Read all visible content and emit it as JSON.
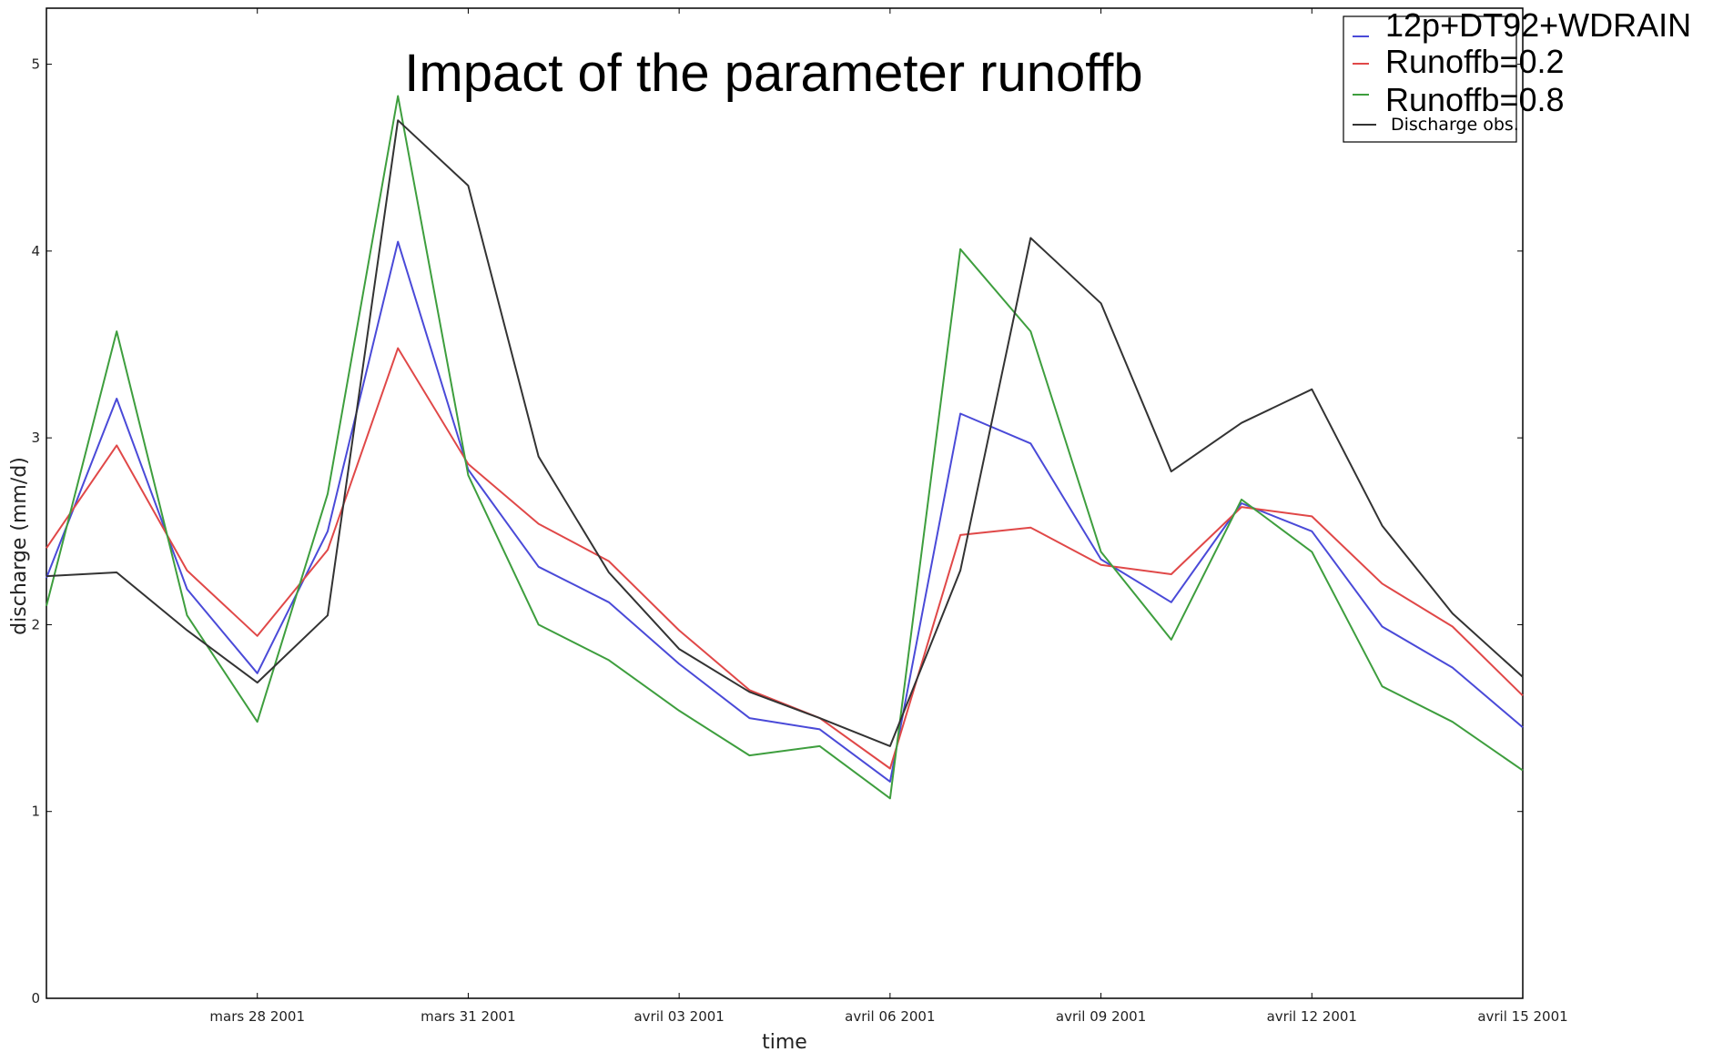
{
  "chart_data": {
    "type": "line",
    "title": "Impact of the parameter runoffb",
    "xlabel": "time",
    "ylabel": "discharge (mm/d)",
    "x": [
      "2001-03-25",
      "2001-03-26",
      "2001-03-27",
      "2001-03-28",
      "2001-03-29",
      "2001-03-30",
      "2001-03-31",
      "2001-04-01",
      "2001-04-02",
      "2001-04-03",
      "2001-04-04",
      "2001-04-05",
      "2001-04-06",
      "2001-04-07",
      "2001-04-08",
      "2001-04-09",
      "2001-04-10",
      "2001-04-11",
      "2001-04-12",
      "2001-04-13",
      "2001-04-14",
      "2001-04-15"
    ],
    "xlim": [
      "2001-03-25",
      "2001-04-15"
    ],
    "ylim": [
      0,
      5.3
    ],
    "xticks": [
      {
        "date": "2001-03-28",
        "label": "mars 28 2001"
      },
      {
        "date": "2001-03-31",
        "label": "mars 31 2001"
      },
      {
        "date": "2001-04-03",
        "label": "avril 03 2001"
      },
      {
        "date": "2001-04-06",
        "label": "avril 06 2001"
      },
      {
        "date": "2001-04-09",
        "label": "avril 09 2001"
      },
      {
        "date": "2001-04-12",
        "label": "avril 12 2001"
      },
      {
        "date": "2001-04-15",
        "label": "avril 15 2001"
      }
    ],
    "yticks": [
      0,
      1,
      2,
      3,
      4,
      5
    ],
    "grid": false,
    "legend_position": "top-right",
    "series": [
      {
        "name": "12p+DT92+WDRAIN",
        "color": "#4a4ad8",
        "values": [
          2.25,
          3.21,
          2.19,
          1.74,
          2.5,
          4.05,
          2.83,
          2.31,
          2.12,
          1.79,
          1.5,
          1.44,
          1.16,
          3.13,
          2.97,
          2.35,
          2.12,
          2.65,
          2.5,
          1.99,
          1.77,
          1.45
        ]
      },
      {
        "name": "Runoffb=0.2",
        "color": "#e04848",
        "values": [
          2.41,
          2.96,
          2.29,
          1.94,
          2.4,
          3.48,
          2.86,
          2.54,
          2.34,
          1.97,
          1.65,
          1.5,
          1.23,
          2.48,
          2.52,
          2.32,
          2.27,
          2.63,
          2.58,
          2.22,
          1.99,
          1.62
        ]
      },
      {
        "name": "Runoffb=0.8",
        "color": "#3e9e3e",
        "values": [
          2.1,
          3.57,
          2.05,
          1.48,
          2.7,
          4.83,
          2.8,
          2.0,
          1.81,
          1.54,
          1.3,
          1.35,
          1.07,
          4.01,
          3.57,
          2.39,
          1.92,
          2.67,
          2.39,
          1.67,
          1.48,
          1.22
        ]
      },
      {
        "name": "Discharge obs.",
        "color": "#333333",
        "values": [
          2.26,
          2.28,
          1.97,
          1.69,
          2.05,
          4.7,
          4.35,
          2.9,
          2.28,
          1.87,
          1.64,
          1.5,
          1.35,
          2.29,
          4.07,
          3.72,
          2.82,
          3.08,
          3.26,
          2.53,
          2.06,
          1.72
        ]
      }
    ]
  }
}
